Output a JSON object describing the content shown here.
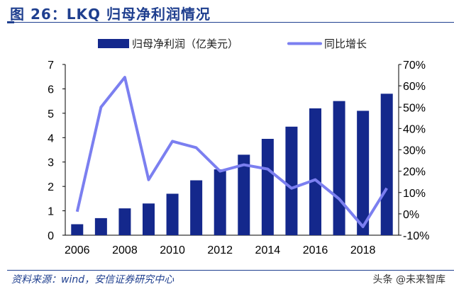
{
  "title": "图 26：LKQ 归母净利润情况",
  "source": "资料来源：wind，安信证券研究中心",
  "watermark": "头条 @未来智库",
  "colors": {
    "bar": "#14288c",
    "line": "#7b7ff0"
  },
  "chart_data": {
    "type": "bar+line",
    "categories": [
      "2006",
      "2007",
      "2008",
      "2009",
      "2010",
      "2011",
      "2012",
      "2013",
      "2014",
      "2015",
      "2016",
      "2017",
      "2018",
      "2019"
    ],
    "x_tick_labels": [
      "2006",
      "2008",
      "2010",
      "2012",
      "2014",
      "2016",
      "2018"
    ],
    "series": [
      {
        "name": "归母净利润（亿美元）",
        "type": "bar",
        "axis": "left",
        "values": [
          0.45,
          0.7,
          1.1,
          1.3,
          1.7,
          2.25,
          2.7,
          3.3,
          3.95,
          4.45,
          5.2,
          5.5,
          5.1,
          5.8
        ]
      },
      {
        "name": "同比增长",
        "type": "line",
        "axis": "right",
        "values": [
          1,
          50,
          64,
          16,
          34,
          31,
          20,
          23,
          21,
          12,
          16,
          7,
          -6,
          12
        ]
      }
    ],
    "left_axis": {
      "ylim": [
        0,
        7
      ],
      "ticks": [
        "0",
        "1",
        "2",
        "3",
        "4",
        "5",
        "6",
        "7"
      ]
    },
    "right_axis": {
      "ylim": [
        -10,
        70
      ],
      "ticks": [
        "-10%",
        "0%",
        "10%",
        "20%",
        "30%",
        "40%",
        "50%",
        "60%",
        "70%"
      ]
    },
    "legend": "top-center",
    "grid": false
  }
}
